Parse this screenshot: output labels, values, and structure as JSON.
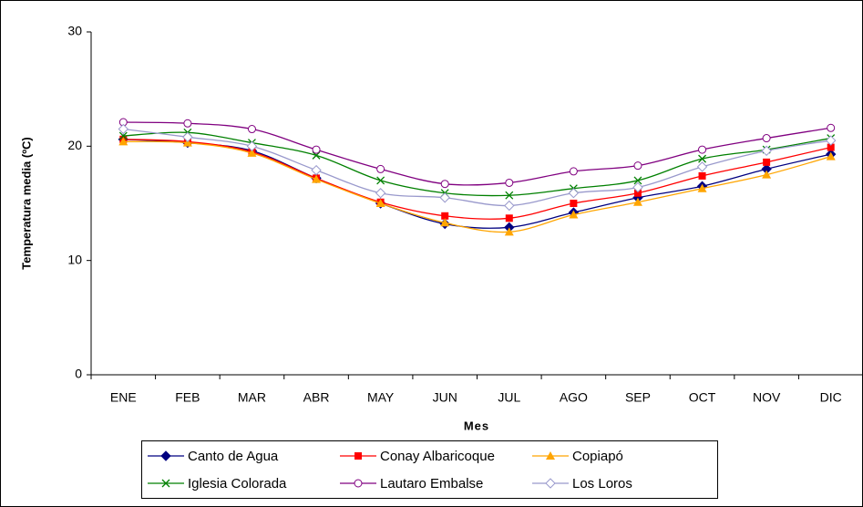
{
  "chart_data": {
    "type": "line",
    "x_label": "Mes",
    "y_label": "Temperatura media (ºC)",
    "categories": [
      "ENE",
      "FEB",
      "MAR",
      "ABR",
      "MAY",
      "JUN",
      "JUL",
      "AGO",
      "SEP",
      "OCT",
      "NOV",
      "DIC"
    ],
    "ylim": [
      0,
      30
    ],
    "yticks": [
      0,
      10,
      20,
      30
    ],
    "series": [
      {
        "name": "Canto de Agua",
        "color": "#000080",
        "marker": "diamond",
        "values": [
          20.6,
          20.3,
          19.6,
          17.2,
          15.0,
          13.2,
          12.9,
          14.2,
          15.5,
          16.5,
          18.0,
          19.3
        ]
      },
      {
        "name": "Conay Albaricoque",
        "color": "#ff0000",
        "marker": "square",
        "values": [
          20.6,
          20.4,
          19.5,
          17.2,
          15.1,
          13.9,
          13.7,
          15.0,
          15.9,
          17.4,
          18.6,
          19.9
        ]
      },
      {
        "name": "Copiapó",
        "color": "#ffa500",
        "marker": "triangle",
        "values": [
          20.4,
          20.3,
          19.4,
          17.1,
          15.0,
          13.3,
          12.5,
          14.0,
          15.1,
          16.3,
          17.5,
          19.1
        ]
      },
      {
        "name": "Iglesia Colorada",
        "color": "#008000",
        "marker": "x",
        "values": [
          20.9,
          21.2,
          20.3,
          19.2,
          17.0,
          15.9,
          15.7,
          16.3,
          17.0,
          18.9,
          19.7,
          20.7
        ]
      },
      {
        "name": "Lautaro Embalse",
        "color": "#800080",
        "marker": "circle",
        "values": [
          22.1,
          22.0,
          21.5,
          19.7,
          18.0,
          16.7,
          16.8,
          17.8,
          18.3,
          19.7,
          20.7,
          21.6
        ]
      },
      {
        "name": "Los Loros",
        "color": "#9999cc",
        "marker": "open-diamond",
        "values": [
          21.5,
          20.8,
          20.0,
          17.9,
          15.9,
          15.5,
          14.8,
          15.9,
          16.4,
          18.2,
          19.6,
          20.5
        ]
      }
    ]
  }
}
